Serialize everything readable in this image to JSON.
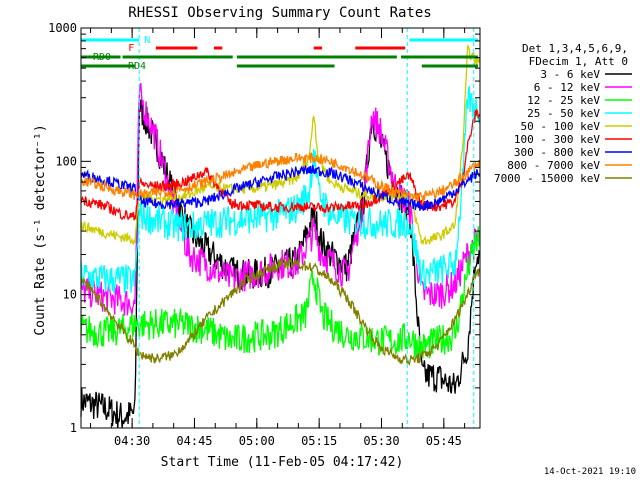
{
  "chart_data": {
    "type": "line",
    "title": "RHESSI Observing Summary Count Rates",
    "xlabel": "Start Time (11-Feb-05 04:17:42)",
    "ylabel": "Count Rate (s⁻¹ detector⁻¹)",
    "yscale": "log",
    "ylim": [
      1,
      1000
    ],
    "xlim_minutes": [
      0,
      96
    ],
    "x_ticks": [
      {
        "minute": 12.3,
        "label": "04:30"
      },
      {
        "minute": 27.3,
        "label": "04:45"
      },
      {
        "minute": 42.3,
        "label": "05:00"
      },
      {
        "minute": 57.3,
        "label": "05:15"
      },
      {
        "minute": 72.3,
        "label": "05:30"
      },
      {
        "minute": 87.3,
        "label": "05:45"
      }
    ],
    "y_ticks": [
      {
        "value": 1,
        "label": "1"
      },
      {
        "value": 10,
        "label": "10"
      },
      {
        "value": 100,
        "label": "100"
      },
      {
        "value": 1000,
        "label": "1000"
      }
    ],
    "legend_header": [
      "Det 1,3,4,5,6,9,",
      "FDecim 1, Att 0"
    ],
    "legend_position": "top-right",
    "series": [
      {
        "name": "3 - 6 keV",
        "color": "#000000",
        "points": [
          [
            0,
            1.6
          ],
          [
            6,
            1.4
          ],
          [
            10,
            1.2
          ],
          [
            13,
            1.3
          ],
          [
            14,
            260
          ],
          [
            18,
            140
          ],
          [
            22,
            60
          ],
          [
            26,
            30
          ],
          [
            30,
            22
          ],
          [
            36,
            15
          ],
          [
            40,
            14
          ],
          [
            44,
            14.5
          ],
          [
            48,
            16
          ],
          [
            52,
            18
          ],
          [
            56,
            40
          ],
          [
            58,
            24
          ],
          [
            60,
            20
          ],
          [
            64,
            16
          ],
          [
            68,
            50
          ],
          [
            70,
            220
          ],
          [
            72,
            140
          ],
          [
            74,
            90
          ],
          [
            76,
            60
          ],
          [
            78,
            48
          ],
          [
            79,
            46
          ],
          [
            82,
            2.5
          ],
          [
            86,
            2.4
          ],
          [
            90,
            2
          ],
          [
            93,
            4
          ],
          [
            95,
            20
          ]
        ]
      },
      {
        "name": "6 - 12 keV",
        "color": "#ff00ff",
        "points": [
          [
            0,
            11
          ],
          [
            6,
            9.5
          ],
          [
            10,
            9
          ],
          [
            13,
            8.5
          ],
          [
            14,
            320
          ],
          [
            18,
            150
          ],
          [
            22,
            50
          ],
          [
            26,
            20
          ],
          [
            30,
            17
          ],
          [
            36,
            13
          ],
          [
            40,
            14
          ],
          [
            44,
            15
          ],
          [
            48,
            17
          ],
          [
            52,
            17
          ],
          [
            56,
            30
          ],
          [
            58,
            20
          ],
          [
            60,
            18
          ],
          [
            64,
            14
          ],
          [
            68,
            50
          ],
          [
            70,
            230
          ],
          [
            72,
            170
          ],
          [
            74,
            100
          ],
          [
            76,
            60
          ],
          [
            78,
            50
          ],
          [
            79,
            46
          ],
          [
            82,
            10
          ],
          [
            86,
            10
          ],
          [
            90,
            12
          ],
          [
            93,
            20
          ],
          [
            95,
            25
          ]
        ]
      },
      {
        "name": "12 - 25 keV",
        "color": "#00ff00",
        "points": [
          [
            0,
            5.5
          ],
          [
            6,
            5.2
          ],
          [
            10,
            5.5
          ],
          [
            13,
            6
          ],
          [
            18,
            6
          ],
          [
            24,
            6
          ],
          [
            30,
            5.5
          ],
          [
            36,
            4.5
          ],
          [
            40,
            4.8
          ],
          [
            46,
            5
          ],
          [
            50,
            6
          ],
          [
            54,
            7
          ],
          [
            56,
            14
          ],
          [
            58,
            7
          ],
          [
            60,
            6
          ],
          [
            64,
            5
          ],
          [
            68,
            4.8
          ],
          [
            72,
            4.5
          ],
          [
            76,
            4.5
          ],
          [
            79,
            4.8
          ],
          [
            82,
            4
          ],
          [
            86,
            4.5
          ],
          [
            90,
            5
          ],
          [
            93,
            15
          ],
          [
            95,
            25
          ]
        ]
      },
      {
        "name": "25 - 50 keV",
        "color": "#00ffff",
        "points": [
          [
            0,
            14
          ],
          [
            6,
            13
          ],
          [
            10,
            13
          ],
          [
            13,
            12.5
          ],
          [
            14,
            40
          ],
          [
            18,
            36
          ],
          [
            22,
            33
          ],
          [
            26,
            32
          ],
          [
            30,
            34
          ],
          [
            36,
            36
          ],
          [
            40,
            37
          ],
          [
            44,
            38
          ],
          [
            48,
            40
          ],
          [
            52,
            45
          ],
          [
            55,
            60
          ],
          [
            56,
            125
          ],
          [
            57,
            60
          ],
          [
            60,
            40
          ],
          [
            64,
            36
          ],
          [
            68,
            35
          ],
          [
            72,
            34
          ],
          [
            76,
            34
          ],
          [
            79,
            35
          ],
          [
            82,
            14
          ],
          [
            86,
            15
          ],
          [
            90,
            17
          ],
          [
            92,
            80
          ],
          [
            93,
            300
          ],
          [
            95,
            250
          ]
        ]
      },
      {
        "name": "50 - 100 keV",
        "color": "#cccc00",
        "points": [
          [
            0,
            33
          ],
          [
            6,
            29
          ],
          [
            10,
            27
          ],
          [
            13,
            26
          ],
          [
            14,
            55
          ],
          [
            18,
            52
          ],
          [
            22,
            52
          ],
          [
            26,
            56
          ],
          [
            30,
            64
          ],
          [
            36,
            62
          ],
          [
            40,
            62
          ],
          [
            44,
            64
          ],
          [
            48,
            68
          ],
          [
            52,
            75
          ],
          [
            55,
            110
          ],
          [
            56,
            240
          ],
          [
            57,
            110
          ],
          [
            60,
            70
          ],
          [
            64,
            62
          ],
          [
            68,
            56
          ],
          [
            72,
            55
          ],
          [
            76,
            55
          ],
          [
            79,
            56
          ],
          [
            82,
            25
          ],
          [
            86,
            27
          ],
          [
            90,
            33
          ],
          [
            92,
            150
          ],
          [
            93,
            680
          ],
          [
            95,
            560
          ]
        ]
      },
      {
        "name": "100 - 300 keV",
        "color": "#ff0000",
        "points": [
          [
            0,
            52
          ],
          [
            6,
            46
          ],
          [
            10,
            40
          ],
          [
            13,
            38
          ],
          [
            14,
            68
          ],
          [
            18,
            65
          ],
          [
            22,
            66
          ],
          [
            26,
            72
          ],
          [
            30,
            85
          ],
          [
            36,
            48
          ],
          [
            40,
            47
          ],
          [
            44,
            46
          ],
          [
            48,
            45
          ],
          [
            52,
            46
          ],
          [
            56,
            45
          ],
          [
            60,
            45
          ],
          [
            64,
            46
          ],
          [
            68,
            47
          ],
          [
            72,
            55
          ],
          [
            76,
            68
          ],
          [
            79,
            78
          ],
          [
            82,
            47
          ],
          [
            86,
            46
          ],
          [
            90,
            50
          ],
          [
            92,
            80
          ],
          [
            93,
            130
          ],
          [
            95,
            230
          ]
        ]
      },
      {
        "name": "300 - 800 keV",
        "color": "#0000ff",
        "points": [
          [
            0,
            80
          ],
          [
            6,
            72
          ],
          [
            10,
            66
          ],
          [
            13,
            62
          ],
          [
            14,
            50
          ],
          [
            18,
            48
          ],
          [
            22,
            48
          ],
          [
            26,
            49
          ],
          [
            30,
            50
          ],
          [
            36,
            60
          ],
          [
            40,
            66
          ],
          [
            44,
            72
          ],
          [
            48,
            78
          ],
          [
            52,
            84
          ],
          [
            56,
            86
          ],
          [
            60,
            82
          ],
          [
            64,
            74
          ],
          [
            68,
            64
          ],
          [
            72,
            56
          ],
          [
            76,
            50
          ],
          [
            79,
            48
          ],
          [
            82,
            46
          ],
          [
            86,
            50
          ],
          [
            90,
            60
          ],
          [
            93,
            72
          ],
          [
            95,
            80
          ]
        ]
      },
      {
        "name": "800 - 7000 keV",
        "color": "#ff8000",
        "points": [
          [
            0,
            72
          ],
          [
            6,
            64
          ],
          [
            10,
            59
          ],
          [
            13,
            56
          ],
          [
            14,
            56
          ],
          [
            18,
            58
          ],
          [
            22,
            60
          ],
          [
            26,
            64
          ],
          [
            30,
            70
          ],
          [
            36,
            80
          ],
          [
            40,
            88
          ],
          [
            44,
            96
          ],
          [
            48,
            102
          ],
          [
            52,
            106
          ],
          [
            56,
            106
          ],
          [
            60,
            100
          ],
          [
            64,
            90
          ],
          [
            68,
            78
          ],
          [
            72,
            66
          ],
          [
            76,
            58
          ],
          [
            79,
            55
          ],
          [
            82,
            54
          ],
          [
            86,
            58
          ],
          [
            90,
            68
          ],
          [
            93,
            82
          ],
          [
            95,
            95
          ]
        ]
      },
      {
        "name": "7000 - 15000 keV",
        "color": "#808000",
        "points": [
          [
            0,
            13
          ],
          [
            4,
            9.5
          ],
          [
            8,
            6.5
          ],
          [
            12,
            4.5
          ],
          [
            14,
            3.6
          ],
          [
            18,
            3.3
          ],
          [
            22,
            3.5
          ],
          [
            26,
            4.5
          ],
          [
            30,
            6.5
          ],
          [
            36,
            10
          ],
          [
            40,
            13
          ],
          [
            44,
            15
          ],
          [
            48,
            17
          ],
          [
            52,
            17
          ],
          [
            56,
            16
          ],
          [
            60,
            13
          ],
          [
            64,
            9.5
          ],
          [
            68,
            6
          ],
          [
            72,
            4
          ],
          [
            76,
            3.4
          ],
          [
            79,
            3.2
          ],
          [
            82,
            3.4
          ],
          [
            86,
            4.2
          ],
          [
            90,
            6.5
          ],
          [
            93,
            10
          ],
          [
            95,
            15
          ]
        ]
      }
    ],
    "state_bars": [
      {
        "name": "N",
        "label": "N",
        "color": "#00ffff",
        "segments": [
          [
            0,
            14
          ],
          [
            79,
            95.5
          ]
        ]
      },
      {
        "name": "F",
        "label": "F",
        "color": "#ff0000",
        "segments": [
          [
            18,
            28
          ],
          [
            32,
            34
          ],
          [
            56,
            58
          ],
          [
            66,
            78
          ]
        ]
      },
      {
        "name": "RD0",
        "label": "RD0",
        "color": "#008000",
        "segments": [
          [
            0,
            9.5
          ],
          [
            10,
            36.5
          ],
          [
            37.5,
            76
          ],
          [
            77,
            95.5
          ]
        ]
      },
      {
        "name": "RD4",
        "label": "RD4",
        "color": "#008000",
        "segments": [
          [
            0,
            13
          ],
          [
            37.5,
            61
          ],
          [
            82,
            95.5
          ]
        ]
      }
    ],
    "vlines_minutes": [
      14,
      78.5,
      94.5
    ]
  },
  "footer_stamp": "14-Oct-2021 19:10"
}
